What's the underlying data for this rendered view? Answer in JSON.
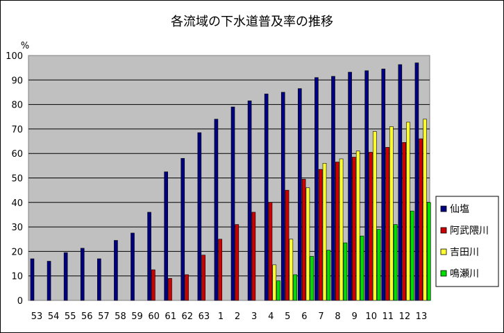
{
  "chart_data": {
    "type": "bar",
    "title": "各流域の下水道普及率の推移",
    "ylabel": "%",
    "xlabel": "",
    "ylim": [
      0,
      100
    ],
    "yticks": [
      0,
      10,
      20,
      30,
      40,
      50,
      60,
      70,
      80,
      90,
      100
    ],
    "grid": true,
    "legend_position": "right",
    "categories": [
      "53",
      "54",
      "55",
      "56",
      "57",
      "58",
      "59",
      "60",
      "61",
      "62",
      "63",
      "1",
      "2",
      "3",
      "4",
      "5",
      "6",
      "7",
      "8",
      "9",
      "10",
      "11",
      "12",
      "13"
    ],
    "series": [
      {
        "name": "仙塩",
        "color": "#000080",
        "values": [
          17,
          16,
          19.5,
          21.3,
          17,
          24.5,
          27.5,
          36,
          52.5,
          58,
          68.5,
          74,
          79,
          81.5,
          84.3,
          85,
          86.5,
          91,
          91.5,
          93.2,
          93.8,
          94.5,
          96.3,
          97
        ]
      },
      {
        "name": "阿武隈川",
        "color": "#cc0000",
        "values": [
          null,
          null,
          null,
          null,
          null,
          null,
          null,
          12.5,
          9,
          10.5,
          18.5,
          25,
          31,
          36,
          40,
          45,
          49.5,
          53.5,
          56.5,
          58.5,
          60.5,
          62.5,
          64.5,
          66
        ]
      },
      {
        "name": "吉田川",
        "color": "#ffff33",
        "values": [
          null,
          null,
          null,
          null,
          null,
          null,
          null,
          null,
          null,
          null,
          null,
          null,
          null,
          null,
          14.5,
          25,
          46,
          56,
          57.8,
          61,
          69,
          71,
          72.8,
          74
        ]
      },
      {
        "name": "鳴瀬川",
        "color": "#00dd00",
        "values": [
          null,
          null,
          null,
          null,
          null,
          null,
          null,
          null,
          null,
          null,
          null,
          null,
          null,
          null,
          8,
          10.5,
          18,
          20.5,
          23.5,
          26.3,
          29,
          31,
          36.5,
          40
        ]
      }
    ]
  }
}
